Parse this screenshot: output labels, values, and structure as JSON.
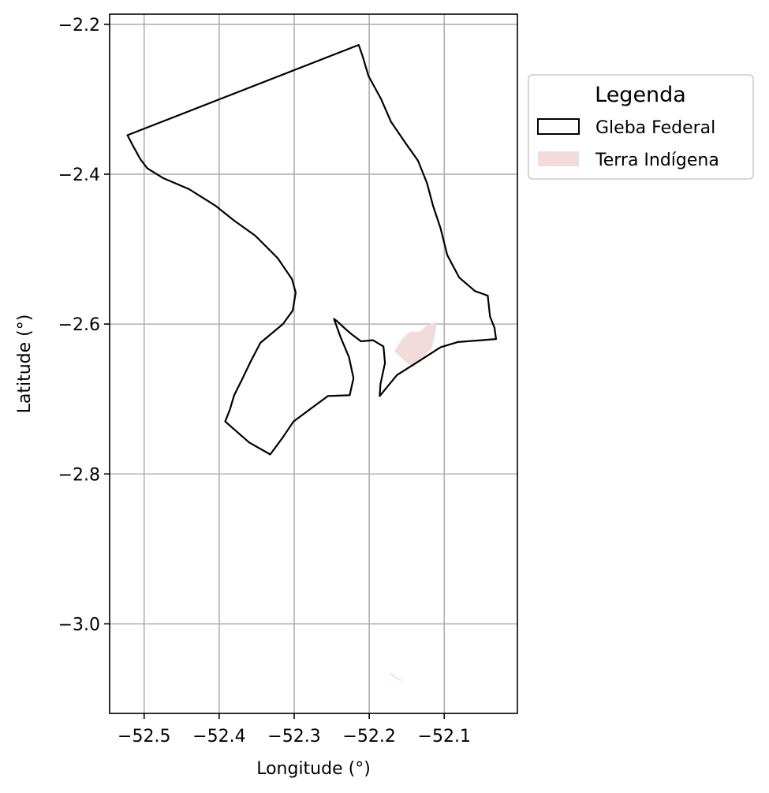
{
  "chart_data": {
    "type": "map",
    "xlabel": "Longitude (°)",
    "ylabel": "Latitude (°)",
    "xlim": [
      -52.546,
      -52.0025
    ],
    "ylim": [
      -3.1195,
      -2.1865
    ],
    "x_ticks": [
      -52.5,
      -52.4,
      -52.3,
      -52.2,
      -52.1
    ],
    "x_tick_labels": [
      "−52.5",
      "−52.4",
      "−52.3",
      "−52.2",
      "−52.1"
    ],
    "y_ticks": [
      -2.2,
      -2.4,
      -2.6,
      -2.8,
      -3.0
    ],
    "y_tick_labels": [
      "−2.2",
      "−2.4",
      "−2.6",
      "−2.8",
      "−3.0"
    ],
    "grid": true,
    "legend": {
      "title": "Legenda",
      "placement": "outside-upper-right",
      "entries": [
        "Gleba Federal",
        "Terra Indígena"
      ]
    },
    "layers": [
      {
        "name": "Gleba Federal",
        "kind": "polygon-outline",
        "color": "#000000",
        "coordinates": [
          [
            -52.5222,
            -2.348
          ],
          [
            -52.214,
            -2.2275
          ],
          [
            -52.209,
            -2.242
          ],
          [
            -52.201,
            -2.269
          ],
          [
            -52.184,
            -2.3
          ],
          [
            -52.171,
            -2.33
          ],
          [
            -52.152,
            -2.358
          ],
          [
            -52.135,
            -2.382
          ],
          [
            -52.123,
            -2.412
          ],
          [
            -52.115,
            -2.442
          ],
          [
            -52.105,
            -2.472
          ],
          [
            -52.096,
            -2.508
          ],
          [
            -52.08,
            -2.538
          ],
          [
            -52.059,
            -2.556
          ],
          [
            -52.042,
            -2.562
          ],
          [
            -52.039,
            -2.59
          ],
          [
            -52.033,
            -2.605
          ],
          [
            -52.031,
            -2.62
          ],
          [
            -52.056,
            -2.622
          ],
          [
            -52.082,
            -2.624
          ],
          [
            -52.105,
            -2.631
          ],
          [
            -52.133,
            -2.649
          ],
          [
            -52.163,
            -2.668
          ],
          [
            -52.186,
            -2.696
          ],
          [
            -52.185,
            -2.68
          ],
          [
            -52.179,
            -2.652
          ],
          [
            -52.181,
            -2.63
          ],
          [
            -52.195,
            -2.6215
          ],
          [
            -52.211,
            -2.623
          ],
          [
            -52.223,
            -2.614
          ],
          [
            -52.231,
            -2.607
          ],
          [
            -52.243,
            -2.596
          ],
          [
            -52.247,
            -2.593
          ],
          [
            -52.238,
            -2.618
          ],
          [
            -52.227,
            -2.644
          ],
          [
            -52.221,
            -2.672
          ],
          [
            -52.226,
            -2.695
          ],
          [
            -52.255,
            -2.696
          ],
          [
            -52.278,
            -2.713
          ],
          [
            -52.301,
            -2.73
          ],
          [
            -52.315,
            -2.751
          ],
          [
            -52.332,
            -2.774
          ],
          [
            -52.36,
            -2.758
          ],
          [
            -52.392,
            -2.73
          ],
          [
            -52.386,
            -2.715
          ],
          [
            -52.38,
            -2.695
          ],
          [
            -52.37,
            -2.675
          ],
          [
            -52.358,
            -2.65
          ],
          [
            -52.345,
            -2.625
          ],
          [
            -52.315,
            -2.6
          ],
          [
            -52.302,
            -2.582
          ],
          [
            -52.298,
            -2.558
          ],
          [
            -52.303,
            -2.54
          ],
          [
            -52.322,
            -2.512
          ],
          [
            -52.352,
            -2.482
          ],
          [
            -52.38,
            -2.462
          ],
          [
            -52.405,
            -2.442
          ],
          [
            -52.44,
            -2.42
          ],
          [
            -52.475,
            -2.405
          ],
          [
            -52.496,
            -2.392
          ],
          [
            -52.505,
            -2.38
          ],
          [
            -52.515,
            -2.362
          ],
          [
            -52.5222,
            -2.348
          ]
        ]
      },
      {
        "name": "Terra Indígena",
        "kind": "filled-polygon",
        "color": "#f2dcdb",
        "coordinates": [
          [
            -52.166,
            -2.636
          ],
          [
            -52.156,
            -2.62
          ],
          [
            -52.146,
            -2.611
          ],
          [
            -52.132,
            -2.61
          ],
          [
            -52.123,
            -2.602
          ],
          [
            -52.11,
            -2.597
          ],
          [
            -52.113,
            -2.615
          ],
          [
            -52.117,
            -2.632
          ],
          [
            -52.133,
            -2.649
          ],
          [
            -52.142,
            -2.657
          ],
          [
            -52.156,
            -2.646
          ]
        ]
      },
      {
        "name": "Terra Indígena",
        "kind": "filled-polygon",
        "color": "#f2dcdb",
        "coordinates": [
          [
            -52.172,
            -3.066
          ],
          [
            -52.165,
            -3.071
          ],
          [
            -52.156,
            -3.076
          ],
          [
            -52.162,
            -3.0735
          ],
          [
            -52.17,
            -3.069
          ]
        ]
      }
    ]
  }
}
